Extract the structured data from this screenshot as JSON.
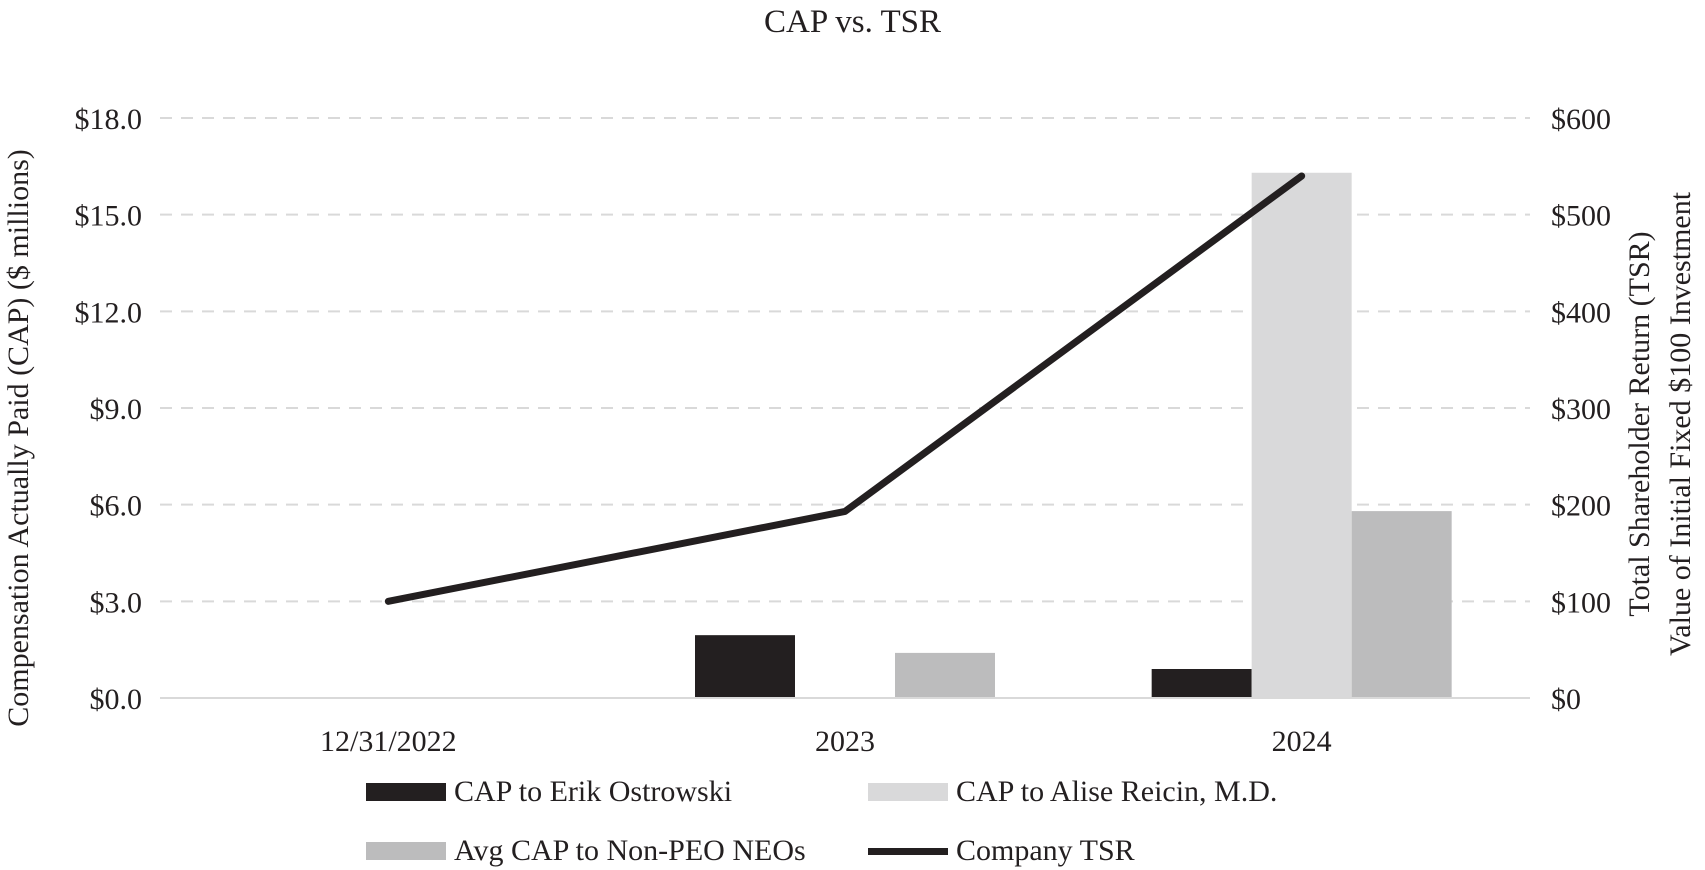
{
  "chart_data": {
    "type": "bar",
    "title": "CAP vs. TSR",
    "categories": [
      "12/31/2022",
      "2023",
      "2024"
    ],
    "y_left": {
      "label": "Compensation Actually Paid (CAP) ($ millions)",
      "ylim": [
        0,
        18
      ],
      "ticks": [
        0,
        3,
        6,
        9,
        12,
        15,
        18
      ],
      "tick_labels": [
        "$0.0",
        "$3.0",
        "$6.0",
        "$9.0",
        "$12.0",
        "$15.0",
        "$18.0"
      ]
    },
    "y_right": {
      "label_line1": "Total Shareholder Return (TSR)",
      "label_line2": "Value of Initial Fixed $100 Investment",
      "ylim": [
        0,
        600
      ],
      "ticks": [
        0,
        100,
        200,
        300,
        400,
        500,
        600
      ],
      "tick_labels": [
        "$0",
        "$100",
        "$200",
        "$300",
        "$400",
        "$500",
        "$600"
      ]
    },
    "grid": "horizontal-dashed",
    "legend_position": "bottom",
    "series": [
      {
        "name": "CAP to Erik Ostrowski",
        "type": "bar",
        "axis": "left",
        "color": "#231f20",
        "values": [
          0,
          1.95,
          0.9
        ]
      },
      {
        "name": "CAP to Alise Reicin, M.D.",
        "type": "bar",
        "axis": "left",
        "color": "#d9d9da",
        "values": [
          0,
          0,
          16.3
        ]
      },
      {
        "name": "Avg CAP to Non-PEO NEOs",
        "type": "bar",
        "axis": "left",
        "color": "#bcbcbd",
        "values": [
          0,
          1.4,
          5.8
        ]
      },
      {
        "name": "Company TSR",
        "type": "line",
        "axis": "right",
        "color": "#231f20",
        "values": [
          100,
          193,
          540
        ]
      }
    ]
  }
}
